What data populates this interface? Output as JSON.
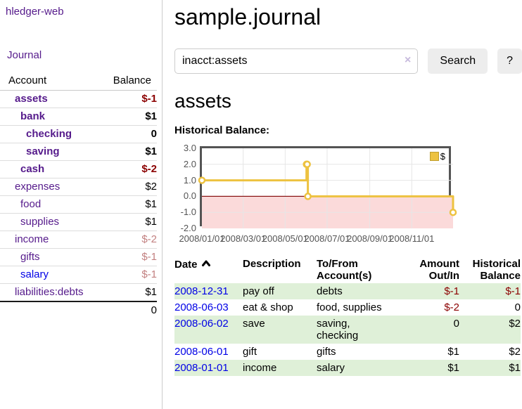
{
  "sidebar": {
    "app_title": "hledger-web",
    "journal_link": "Journal",
    "accounts": {
      "col_account": "Account",
      "col_balance": "Balance",
      "rows": [
        {
          "name": "assets",
          "balance": "$-1"
        },
        {
          "name": "bank",
          "balance": "$1"
        },
        {
          "name": "checking",
          "balance": "0"
        },
        {
          "name": "saving",
          "balance": "$1"
        },
        {
          "name": "cash",
          "balance": "$-2"
        },
        {
          "name": "expenses",
          "balance": "$2"
        },
        {
          "name": "food",
          "balance": "$1"
        },
        {
          "name": "supplies",
          "balance": "$1"
        },
        {
          "name": "income",
          "balance": "$-2"
        },
        {
          "name": "gifts",
          "balance": "$-1"
        },
        {
          "name": "salary",
          "balance": "$-1"
        },
        {
          "name": "liabilities:debts",
          "balance": "$1"
        }
      ],
      "total": "0"
    }
  },
  "main": {
    "title": "sample.journal",
    "search": {
      "value": "inacct:assets",
      "clear_icon": "×",
      "search_button": "Search",
      "help_button": "?"
    },
    "account_heading": "assets",
    "chart_title": "Historical Balance:"
  },
  "chart_data": {
    "type": "line",
    "step": true,
    "title": "Historical Balance:",
    "series": [
      {
        "name": "$",
        "color": "#edc240",
        "points": [
          [
            "2008-01-01",
            1
          ],
          [
            "2008-06-01",
            2
          ],
          [
            "2008-06-02",
            2
          ],
          [
            "2008-06-03",
            0
          ],
          [
            "2008-12-31",
            -1
          ]
        ]
      }
    ],
    "xrange": [
      "2008-01-01",
      "2008-12-31"
    ],
    "ylim": [
      -2,
      3
    ],
    "yticks": [
      "3.0",
      "2.0",
      "1.0",
      "0.0",
      "-1.0",
      "-2.0"
    ],
    "xticks": [
      "2008/01/01",
      "2008/03/01",
      "2008/05/01",
      "2008/07/01",
      "2008/09/01",
      "2008/11/01"
    ],
    "grid": true,
    "legend_position": "top-right",
    "border_color": "#545454",
    "grid_color": "#e6e6e6",
    "negative_region_color": "#fbdada",
    "zero_line_color": "#8b1616"
  },
  "register": {
    "headers": {
      "date": "Date",
      "description": "Description",
      "tofrom": "To/From Account(s)",
      "amount": "Amount Out/In",
      "historical": "Historical Balance"
    },
    "rows": [
      {
        "date": "2008-12-31",
        "description": "pay off",
        "accounts": "debts",
        "amount": "$-1",
        "balance": "$-1"
      },
      {
        "date": "2008-06-03",
        "description": "eat & shop",
        "accounts": "food, supplies",
        "amount": "$-2",
        "balance": "0"
      },
      {
        "date": "2008-06-02",
        "description": "save",
        "accounts": "saving, checking",
        "amount": "0",
        "balance": "$2"
      },
      {
        "date": "2008-06-01",
        "description": "gift",
        "accounts": "gifts",
        "amount": "$1",
        "balance": "$2"
      },
      {
        "date": "2008-01-01",
        "description": "income",
        "accounts": "salary",
        "amount": "$1",
        "balance": "$1"
      }
    ]
  },
  "colors": {
    "link_purple": "#551a8b",
    "link_blue": "#0000e6",
    "negative_strong": "#8b0000",
    "negative_muted": "#c28080",
    "row_stripe_green": "#dff0d8",
    "accent_gold": "#edc240"
  }
}
